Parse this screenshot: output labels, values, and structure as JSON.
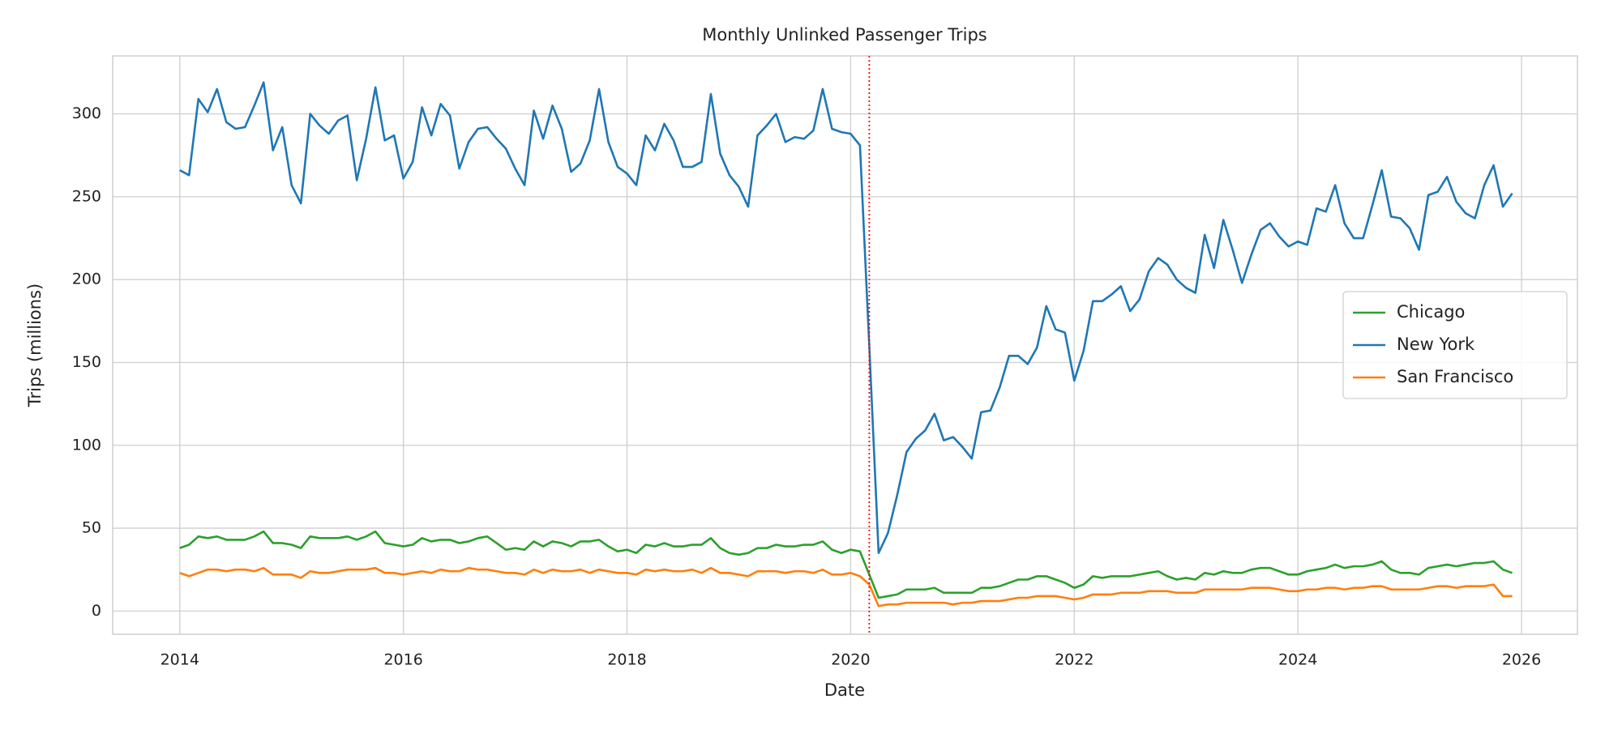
{
  "chart_data": {
    "type": "line",
    "title": "Monthly Unlinked Passenger Trips",
    "x_label": "Date",
    "y_label": "Trips (millions)",
    "x": [
      "2014-01",
      "2014-02",
      "2014-03",
      "2014-04",
      "2014-05",
      "2014-06",
      "2014-07",
      "2014-08",
      "2014-09",
      "2014-10",
      "2014-11",
      "2014-12",
      "2015-01",
      "2015-02",
      "2015-03",
      "2015-04",
      "2015-05",
      "2015-06",
      "2015-07",
      "2015-08",
      "2015-09",
      "2015-10",
      "2015-11",
      "2015-12",
      "2016-01",
      "2016-02",
      "2016-03",
      "2016-04",
      "2016-05",
      "2016-06",
      "2016-07",
      "2016-08",
      "2016-09",
      "2016-10",
      "2016-11",
      "2016-12",
      "2017-01",
      "2017-02",
      "2017-03",
      "2017-04",
      "2017-05",
      "2017-06",
      "2017-07",
      "2017-08",
      "2017-09",
      "2017-10",
      "2017-11",
      "2017-12",
      "2018-01",
      "2018-02",
      "2018-03",
      "2018-04",
      "2018-05",
      "2018-06",
      "2018-07",
      "2018-08",
      "2018-09",
      "2018-10",
      "2018-11",
      "2018-12",
      "2019-01",
      "2019-02",
      "2019-03",
      "2019-04",
      "2019-05",
      "2019-06",
      "2019-07",
      "2019-08",
      "2019-09",
      "2019-10",
      "2019-11",
      "2019-12",
      "2020-01",
      "2020-02",
      "2020-03",
      "2020-04",
      "2020-05",
      "2020-06",
      "2020-07",
      "2020-08",
      "2020-09",
      "2020-10",
      "2020-11",
      "2020-12",
      "2021-01",
      "2021-02",
      "2021-03",
      "2021-04",
      "2021-05",
      "2021-06",
      "2021-07",
      "2021-08",
      "2021-09",
      "2021-10",
      "2021-11",
      "2021-12",
      "2022-01",
      "2022-02",
      "2022-03",
      "2022-04",
      "2022-05",
      "2022-06",
      "2022-07",
      "2022-08",
      "2022-09",
      "2022-10",
      "2022-11",
      "2022-12",
      "2023-01",
      "2023-02",
      "2023-03",
      "2023-04",
      "2023-05",
      "2023-06",
      "2023-07",
      "2023-08",
      "2023-09",
      "2023-10",
      "2023-11",
      "2023-12",
      "2024-01",
      "2024-02",
      "2024-03",
      "2024-04",
      "2024-05",
      "2024-06",
      "2024-07",
      "2024-08",
      "2024-09",
      "2024-10",
      "2024-11",
      "2024-12",
      "2025-01",
      "2025-02",
      "2025-03",
      "2025-04",
      "2025-05",
      "2025-06",
      "2025-07",
      "2025-08",
      "2025-09",
      "2025-10",
      "2025-11",
      "2025-12"
    ],
    "series": [
      {
        "name": "Chicago",
        "color": "#2ca02c",
        "values": [
          38,
          40,
          45,
          44,
          45,
          43,
          43,
          43,
          45,
          48,
          41,
          41,
          40,
          38,
          45,
          44,
          44,
          44,
          45,
          43,
          45,
          48,
          41,
          40,
          39,
          40,
          44,
          42,
          43,
          43,
          41,
          42,
          44,
          45,
          41,
          37,
          38,
          37,
          42,
          39,
          42,
          41,
          39,
          42,
          42,
          43,
          39,
          36,
          37,
          35,
          40,
          39,
          41,
          39,
          39,
          40,
          40,
          44,
          38,
          35,
          34,
          35,
          38,
          38,
          40,
          39,
          39,
          40,
          40,
          42,
          37,
          35,
          37,
          36,
          22,
          8,
          9,
          10,
          13,
          13,
          13,
          14,
          11,
          11,
          11,
          11,
          14,
          14,
          15,
          17,
          19,
          19,
          21,
          21,
          19,
          17,
          14,
          16,
          21,
          20,
          21,
          21,
          21,
          22,
          23,
          24,
          21,
          19,
          20,
          19,
          23,
          22,
          24,
          23,
          23,
          25,
          26,
          26,
          24,
          22,
          22,
          24,
          25,
          26,
          28,
          26,
          27,
          27,
          28,
          30,
          25,
          23,
          23,
          22,
          26,
          27,
          28,
          27,
          28,
          29,
          29,
          30,
          25,
          23
        ]
      },
      {
        "name": "New York",
        "color": "#1f77b4",
        "values": [
          266,
          263,
          309,
          301,
          315,
          295,
          291,
          292,
          305,
          319,
          278,
          292,
          257,
          246,
          300,
          293,
          288,
          296,
          299,
          260,
          285,
          316,
          284,
          287,
          261,
          271,
          304,
          287,
          306,
          299,
          267,
          283,
          291,
          292,
          285,
          279,
          267,
          257,
          302,
          285,
          305,
          291,
          265,
          270,
          284,
          315,
          283,
          268,
          264,
          257,
          287,
          278,
          294,
          284,
          268,
          268,
          271,
          312,
          276,
          263,
          256,
          244,
          287,
          293,
          300,
          283,
          286,
          285,
          290,
          315,
          291,
          289,
          288,
          281,
          160,
          35,
          47,
          70,
          96,
          104,
          109,
          119,
          103,
          105,
          99,
          92,
          120,
          121,
          135,
          154,
          154,
          149,
          159,
          184,
          170,
          168,
          139,
          157,
          187,
          187,
          191,
          196,
          181,
          188,
          205,
          213,
          209,
          200,
          195,
          192,
          227,
          207,
          236,
          218,
          198,
          215,
          230,
          234,
          226,
          220,
          223,
          221,
          243,
          241,
          257,
          234,
          225,
          225,
          245,
          266,
          238,
          237,
          231,
          218,
          251,
          253,
          262,
          247,
          240,
          237,
          257,
          269,
          244,
          252
        ]
      },
      {
        "name": "San Francisco",
        "color": "#ff7f0e",
        "values": [
          23,
          21,
          23,
          25,
          25,
          24,
          25,
          25,
          24,
          26,
          22,
          22,
          22,
          20,
          24,
          23,
          23,
          24,
          25,
          25,
          25,
          26,
          23,
          23,
          22,
          23,
          24,
          23,
          25,
          24,
          24,
          26,
          25,
          25,
          24,
          23,
          23,
          22,
          25,
          23,
          25,
          24,
          24,
          25,
          23,
          25,
          24,
          23,
          23,
          22,
          25,
          24,
          25,
          24,
          24,
          25,
          23,
          26,
          23,
          23,
          22,
          21,
          24,
          24,
          24,
          23,
          24,
          24,
          23,
          25,
          22,
          22,
          23,
          21,
          16,
          3,
          4,
          4,
          5,
          5,
          5,
          5,
          5,
          4,
          5,
          5,
          6,
          6,
          6,
          7,
          8,
          8,
          9,
          9,
          9,
          8,
          7,
          8,
          10,
          10,
          10,
          11,
          11,
          11,
          12,
          12,
          12,
          11,
          11,
          11,
          13,
          13,
          13,
          13,
          13,
          14,
          14,
          14,
          13,
          12,
          12,
          13,
          13,
          14,
          14,
          13,
          14,
          14,
          15,
          15,
          13,
          13,
          13,
          13,
          14,
          15,
          15,
          14,
          15,
          15,
          15,
          16,
          9,
          9
        ]
      }
    ],
    "xlim": [
      2013.4,
      2026.5
    ],
    "xticks": [
      2014,
      2016,
      2018,
      2020,
      2022,
      2024,
      2026
    ],
    "ylim": [
      -14,
      335
    ],
    "yticks": [
      0,
      50,
      100,
      150,
      200,
      250,
      300
    ],
    "grid": true,
    "legend": "center right",
    "vline": {
      "x": "2020-03",
      "color": "#ff0000"
    }
  }
}
